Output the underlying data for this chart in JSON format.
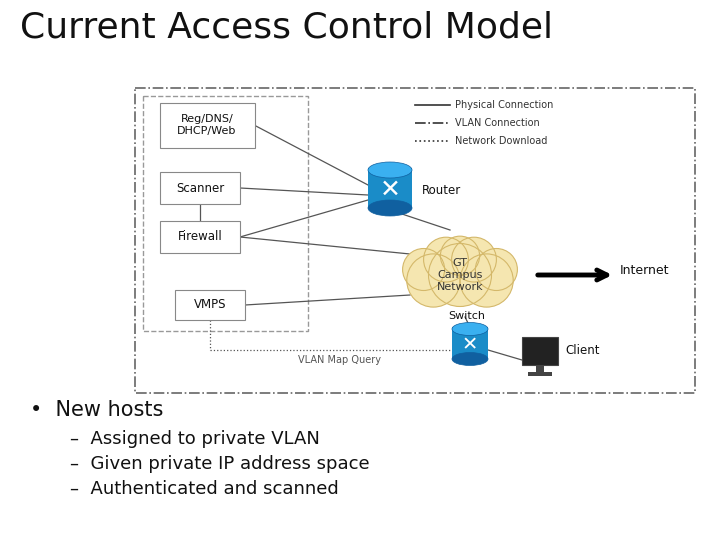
{
  "title": "Current Access Control Model",
  "title_fontsize": 26,
  "background_color": "#ffffff",
  "bullet_main": "New hosts",
  "bullet_items": [
    "Assigned to private VLAN",
    "Given private IP address space",
    "Authenticated and scanned"
  ],
  "router_color": "#1a8cc8",
  "switch_color": "#1a8cc8",
  "cloud_color": "#f5e6b0",
  "cloud_edge": "#d4b86a",
  "box_edge": "#888888",
  "line_color": "#555555",
  "legend_items": [
    {
      "label": "Physical Connection",
      "style": "solid"
    },
    {
      "label": "VLAN Connection",
      "style": "dashdot"
    },
    {
      "label": "Network Download",
      "style": "dotted"
    }
  ]
}
